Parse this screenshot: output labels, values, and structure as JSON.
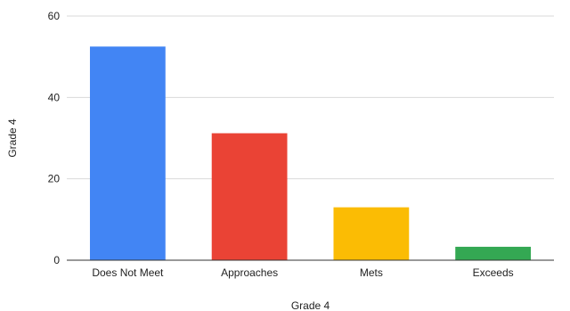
{
  "chart_data": {
    "type": "bar",
    "categories": [
      "Does Not Meet",
      "Approaches",
      "Mets",
      "Exceeds"
    ],
    "values": [
      52.5,
      31.2,
      13,
      3.3
    ],
    "colors": [
      "#4285F4",
      "#EA4335",
      "#FBBC04",
      "#34A853"
    ],
    "xlabel": "Grade 4",
    "ylabel": "Grade 4",
    "ylim": [
      0,
      60
    ],
    "yticks": [
      0,
      20,
      40,
      60
    ],
    "grid": true
  }
}
